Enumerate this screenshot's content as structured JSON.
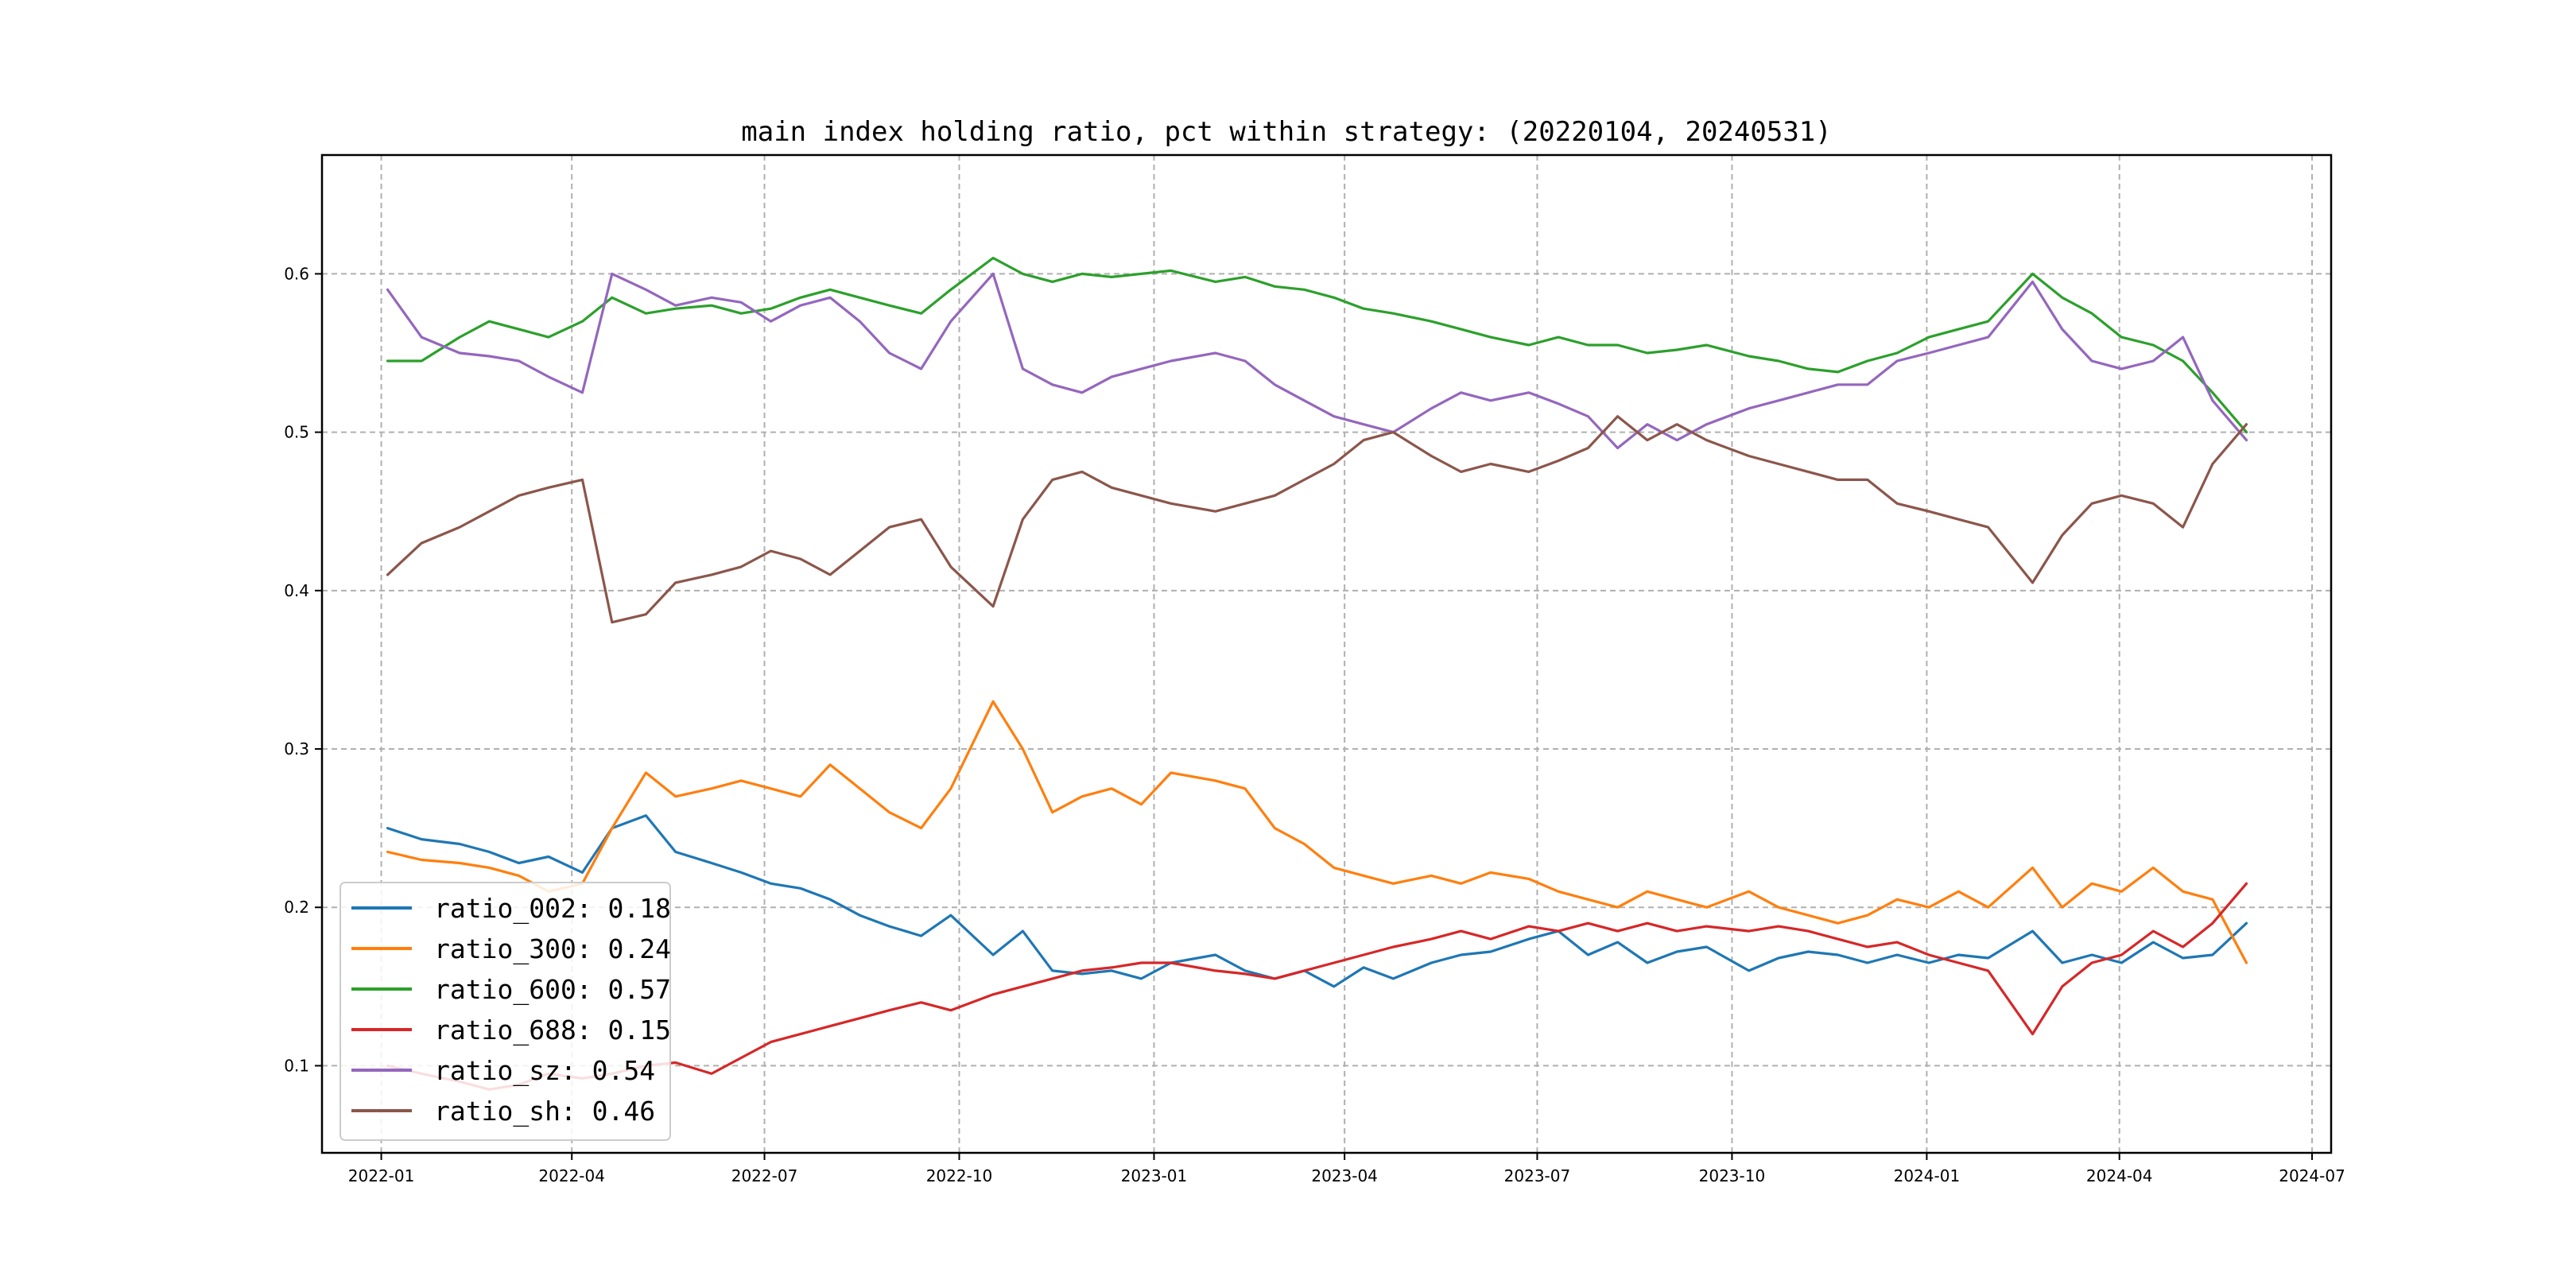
{
  "chart_data": {
    "type": "line",
    "title": "main index holding ratio, pct within strategy: (20220104, 20240531)",
    "xlabel": "",
    "ylabel": "",
    "x_range": [
      "2021-12-04",
      "2024-07-10"
    ],
    "ylim": [
      0.045,
      0.675
    ],
    "grid": true,
    "legend_position": "lower-left",
    "x_ticks": [
      {
        "date": "2022-01-01",
        "label": "2022-01"
      },
      {
        "date": "2022-04-01",
        "label": "2022-04"
      },
      {
        "date": "2022-07-01",
        "label": "2022-07"
      },
      {
        "date": "2022-10-01",
        "label": "2022-10"
      },
      {
        "date": "2023-01-01",
        "label": "2023-01"
      },
      {
        "date": "2023-04-01",
        "label": "2023-04"
      },
      {
        "date": "2023-07-01",
        "label": "2023-07"
      },
      {
        "date": "2023-10-01",
        "label": "2023-10"
      },
      {
        "date": "2024-01-01",
        "label": "2024-01"
      },
      {
        "date": "2024-04-01",
        "label": "2024-04"
      },
      {
        "date": "2024-07-01",
        "label": "2024-07"
      }
    ],
    "y_ticks": [
      {
        "value": 0.1,
        "label": "0.1"
      },
      {
        "value": 0.2,
        "label": "0.2"
      },
      {
        "value": 0.3,
        "label": "0.3"
      },
      {
        "value": 0.4,
        "label": "0.4"
      },
      {
        "value": 0.5,
        "label": "0.5"
      },
      {
        "value": 0.6,
        "label": "0.6"
      }
    ],
    "x": [
      "2022-01-04",
      "2022-01-20",
      "2022-02-07",
      "2022-02-21",
      "2022-03-07",
      "2022-03-21",
      "2022-04-06",
      "2022-04-20",
      "2022-05-06",
      "2022-05-20",
      "2022-06-06",
      "2022-06-20",
      "2022-07-04",
      "2022-07-18",
      "2022-08-01",
      "2022-08-15",
      "2022-08-29",
      "2022-09-13",
      "2022-09-27",
      "2022-10-17",
      "2022-10-31",
      "2022-11-14",
      "2022-11-28",
      "2022-12-12",
      "2022-12-26",
      "2023-01-09",
      "2023-01-30",
      "2023-02-13",
      "2023-02-27",
      "2023-03-13",
      "2023-03-27",
      "2023-04-10",
      "2023-04-24",
      "2023-05-12",
      "2023-05-26",
      "2023-06-09",
      "2023-06-27",
      "2023-07-11",
      "2023-07-25",
      "2023-08-08",
      "2023-08-22",
      "2023-09-05",
      "2023-09-19",
      "2023-10-09",
      "2023-10-23",
      "2023-11-06",
      "2023-11-20",
      "2023-12-04",
      "2023-12-18",
      "2024-01-02",
      "2024-01-16",
      "2024-01-30",
      "2024-02-20",
      "2024-03-05",
      "2024-03-19",
      "2024-04-02",
      "2024-04-17",
      "2024-05-01",
      "2024-05-15",
      "2024-05-31"
    ],
    "series": [
      {
        "name": "ratio_002",
        "legend_label": "ratio_002: 0.18",
        "color": "#1f77b4",
        "values": [
          0.25,
          0.243,
          0.24,
          0.235,
          0.228,
          0.232,
          0.222,
          0.25,
          0.258,
          0.235,
          0.228,
          0.222,
          0.215,
          0.212,
          0.205,
          0.195,
          0.188,
          0.182,
          0.195,
          0.17,
          0.185,
          0.16,
          0.158,
          0.16,
          0.155,
          0.165,
          0.17,
          0.16,
          0.155,
          0.16,
          0.15,
          0.162,
          0.155,
          0.165,
          0.17,
          0.172,
          0.18,
          0.185,
          0.17,
          0.178,
          0.165,
          0.172,
          0.175,
          0.16,
          0.168,
          0.172,
          0.17,
          0.165,
          0.17,
          0.165,
          0.17,
          0.168,
          0.185,
          0.165,
          0.17,
          0.165,
          0.178,
          0.168,
          0.17,
          0.19
        ]
      },
      {
        "name": "ratio_300",
        "legend_label": "ratio_300: 0.24",
        "color": "#ff7f0e",
        "values": [
          0.235,
          0.23,
          0.228,
          0.225,
          0.22,
          0.21,
          0.215,
          0.25,
          0.285,
          0.27,
          0.275,
          0.28,
          0.275,
          0.27,
          0.29,
          0.275,
          0.26,
          0.25,
          0.275,
          0.33,
          0.3,
          0.26,
          0.27,
          0.275,
          0.265,
          0.285,
          0.28,
          0.275,
          0.25,
          0.24,
          0.225,
          0.22,
          0.215,
          0.22,
          0.215,
          0.222,
          0.218,
          0.21,
          0.205,
          0.2,
          0.21,
          0.205,
          0.2,
          0.21,
          0.2,
          0.195,
          0.19,
          0.195,
          0.205,
          0.2,
          0.21,
          0.2,
          0.225,
          0.2,
          0.215,
          0.21,
          0.225,
          0.21,
          0.205,
          0.165
        ]
      },
      {
        "name": "ratio_600",
        "legend_label": "ratio_600: 0.57",
        "color": "#2ca02c",
        "values": [
          0.545,
          0.545,
          0.56,
          0.57,
          0.565,
          0.56,
          0.57,
          0.585,
          0.575,
          0.578,
          0.58,
          0.575,
          0.578,
          0.585,
          0.59,
          0.585,
          0.58,
          0.575,
          0.59,
          0.61,
          0.6,
          0.595,
          0.6,
          0.598,
          0.6,
          0.602,
          0.595,
          0.598,
          0.592,
          0.59,
          0.585,
          0.578,
          0.575,
          0.57,
          0.565,
          0.56,
          0.555,
          0.56,
          0.555,
          0.555,
          0.55,
          0.552,
          0.555,
          0.548,
          0.545,
          0.54,
          0.538,
          0.545,
          0.55,
          0.56,
          0.565,
          0.57,
          0.6,
          0.585,
          0.575,
          0.56,
          0.555,
          0.545,
          0.525,
          0.5
        ]
      },
      {
        "name": "ratio_688",
        "legend_label": "ratio_688: 0.15",
        "color": "#d62728",
        "values": [
          0.1,
          0.095,
          0.09,
          0.085,
          0.088,
          0.095,
          0.092,
          0.095,
          0.1,
          0.102,
          0.095,
          0.105,
          0.115,
          0.12,
          0.125,
          0.13,
          0.135,
          0.14,
          0.135,
          0.145,
          0.15,
          0.155,
          0.16,
          0.162,
          0.165,
          0.165,
          0.16,
          0.158,
          0.155,
          0.16,
          0.165,
          0.17,
          0.175,
          0.18,
          0.185,
          0.18,
          0.188,
          0.185,
          0.19,
          0.185,
          0.19,
          0.185,
          0.188,
          0.185,
          0.188,
          0.185,
          0.18,
          0.175,
          0.178,
          0.17,
          0.165,
          0.16,
          0.12,
          0.15,
          0.165,
          0.17,
          0.185,
          0.175,
          0.19,
          0.215
        ]
      },
      {
        "name": "ratio_sz",
        "legend_label": "ratio_sz: 0.54",
        "color": "#9467bd",
        "values": [
          0.59,
          0.56,
          0.55,
          0.548,
          0.545,
          0.535,
          0.525,
          0.6,
          0.59,
          0.58,
          0.585,
          0.582,
          0.57,
          0.58,
          0.585,
          0.57,
          0.55,
          0.54,
          0.57,
          0.6,
          0.54,
          0.53,
          0.525,
          0.535,
          0.54,
          0.545,
          0.55,
          0.545,
          0.53,
          0.52,
          0.51,
          0.505,
          0.5,
          0.515,
          0.525,
          0.52,
          0.525,
          0.518,
          0.51,
          0.49,
          0.505,
          0.495,
          0.505,
          0.515,
          0.52,
          0.525,
          0.53,
          0.53,
          0.545,
          0.55,
          0.555,
          0.56,
          0.595,
          0.565,
          0.545,
          0.54,
          0.545,
          0.56,
          0.52,
          0.495
        ]
      },
      {
        "name": "ratio_sh",
        "legend_label": "ratio_sh: 0.46",
        "color": "#8c564b",
        "values": [
          0.41,
          0.43,
          0.44,
          0.45,
          0.46,
          0.465,
          0.47,
          0.38,
          0.385,
          0.405,
          0.41,
          0.415,
          0.425,
          0.42,
          0.41,
          0.425,
          0.44,
          0.445,
          0.415,
          0.39,
          0.445,
          0.47,
          0.475,
          0.465,
          0.46,
          0.455,
          0.45,
          0.455,
          0.46,
          0.47,
          0.48,
          0.495,
          0.5,
          0.485,
          0.475,
          0.48,
          0.475,
          0.482,
          0.49,
          0.51,
          0.495,
          0.505,
          0.495,
          0.485,
          0.48,
          0.475,
          0.47,
          0.47,
          0.455,
          0.45,
          0.445,
          0.44,
          0.405,
          0.435,
          0.455,
          0.46,
          0.455,
          0.44,
          0.48,
          0.505
        ]
      }
    ]
  }
}
